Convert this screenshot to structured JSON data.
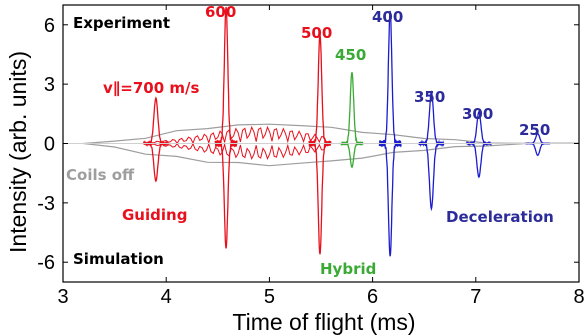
{
  "chart_data": {
    "type": "line",
    "xlabel": "Time of flight (ms)",
    "ylabel": "Intensity (arb. units)",
    "xlim": [
      3,
      8
    ],
    "ylim": [
      -7,
      7
    ],
    "xticks": [
      "3",
      "4",
      "5",
      "6",
      "7",
      "8"
    ],
    "yticks": [
      "6",
      "3",
      "0",
      "-3",
      "-6"
    ],
    "grid": false,
    "legend": "none",
    "colors": {
      "guiding": "#e8101c",
      "hybrid": "#3aaa35",
      "deceleration": "#1c1ccf",
      "coils_off": "#9e9e9e",
      "black": "#000000"
    },
    "annotations": {
      "experiment": "Experiment",
      "simulation": "Simulation",
      "coils_off": "Coils off",
      "guiding": "Guiding",
      "hybrid": "Hybrid",
      "deceleration": "Deceleration",
      "velocity": "v∥=700 m/s",
      "v600": "600",
      "v500": "500",
      "v450": "450",
      "v400": "400",
      "v350": "350",
      "v300": "300",
      "v250": "250"
    },
    "peaks": [
      {
        "label": "700 m/s",
        "group": "guiding",
        "t": 3.9,
        "up": 2.3,
        "down": -1.9,
        "width": 0.04
      },
      {
        "label": "600",
        "group": "guiding",
        "t": 4.58,
        "up": 6.9,
        "down": -5.3,
        "width": 0.035
      },
      {
        "label": "500",
        "group": "guiding",
        "t": 5.49,
        "up": 5.5,
        "down": -5.6,
        "width": 0.035
      },
      {
        "label": "450",
        "group": "hybrid",
        "t": 5.8,
        "up": 3.6,
        "down": -1.2,
        "width": 0.035
      },
      {
        "label": "400",
        "group": "deceleration",
        "t": 6.17,
        "up": 6.7,
        "down": -5.7,
        "width": 0.035
      },
      {
        "label": "350",
        "group": "deceleration",
        "t": 6.57,
        "up": 2.6,
        "down": -3.3,
        "width": 0.04
      },
      {
        "label": "300",
        "group": "deceleration",
        "t": 7.03,
        "up": 1.6,
        "down": -1.7,
        "width": 0.04
      },
      {
        "label": "250",
        "group": "deceleration",
        "t": 7.6,
        "up": 0.5,
        "down": -0.6,
        "width": 0.04
      }
    ],
    "coils_off_series": {
      "x": [
        3.2,
        3.5,
        3.8,
        4.1,
        4.4,
        4.7,
        5.0,
        5.3,
        5.6,
        5.9,
        6.2,
        6.5,
        6.8,
        7.1,
        7.5,
        8.0
      ],
      "upper": [
        0.0,
        0.1,
        0.3,
        0.6,
        0.8,
        0.9,
        1.0,
        0.9,
        0.8,
        0.6,
        0.4,
        0.3,
        0.15,
        0.05,
        0.0,
        0.0
      ],
      "lower": [
        0.0,
        -0.2,
        -0.5,
        -0.7,
        -0.9,
        -1.0,
        -1.1,
        -1.0,
        -0.9,
        -0.7,
        -0.5,
        -0.3,
        -0.2,
        -0.1,
        0.0,
        0.0
      ]
    }
  }
}
